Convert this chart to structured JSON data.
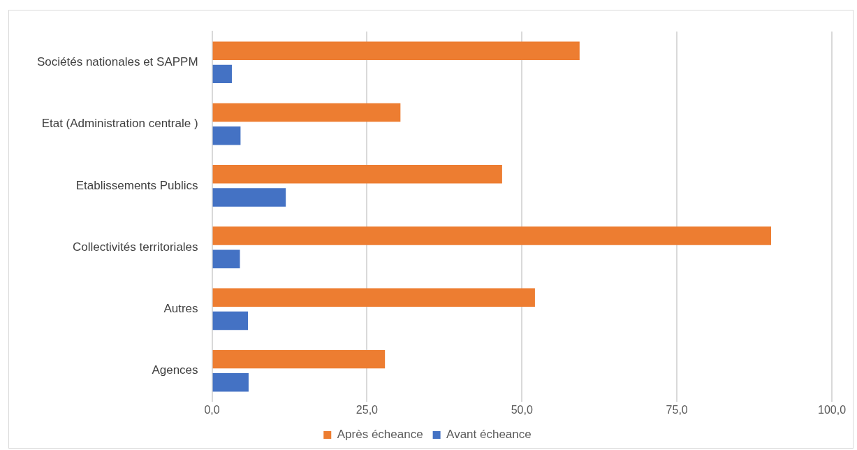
{
  "chart_data": {
    "type": "bar",
    "orientation": "horizontal",
    "categories": [
      "Sociétés nationales et SAPPM",
      "Etat (Administration centrale )",
      "Etablissements Publics",
      "Collectivités territoriales",
      "Autres",
      "Agences"
    ],
    "series": [
      {
        "name": "Après écheance",
        "color": "#ed7d31",
        "values": [
          59.3,
          30.4,
          46.8,
          90.2,
          52.1,
          27.9
        ]
      },
      {
        "name": "Avant écheance",
        "color": "#4472c4",
        "values": [
          3.2,
          4.6,
          11.9,
          4.5,
          5.8,
          5.9
        ]
      }
    ],
    "xlim": [
      0,
      100
    ],
    "xticks": [
      {
        "value": 0,
        "label": "0,0"
      },
      {
        "value": 25,
        "label": "25,0"
      },
      {
        "value": 50,
        "label": "50,0"
      },
      {
        "value": 75,
        "label": "75,0"
      },
      {
        "value": 100,
        "label": "100,0"
      }
    ],
    "grid": "x",
    "legend": "bottom"
  }
}
